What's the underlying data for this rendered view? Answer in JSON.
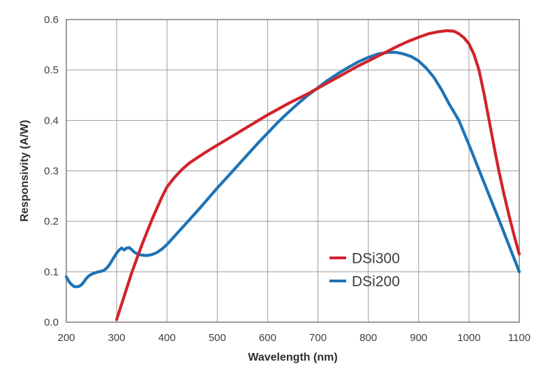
{
  "figure": {
    "background": "#ffffff",
    "grid_color": "#9c9c9c",
    "border_color": "#7d7d7d"
  },
  "chart_data": {
    "type": "line",
    "title": "",
    "xlabel": "Wavelength (nm)",
    "ylabel": "Responsivity (A/W)",
    "xlim": [
      200,
      1100
    ],
    "ylim": [
      0,
      0.6
    ],
    "xticks": [
      200,
      300,
      400,
      500,
      600,
      700,
      800,
      900,
      1000,
      1100
    ],
    "yticks": [
      0,
      0.1,
      0.2,
      0.3,
      0.4,
      0.5,
      0.6
    ],
    "ytick_labels": [
      "0.0",
      "0.1",
      "0.2",
      "0.3",
      "0.4",
      "0.5",
      "0.6"
    ],
    "grid": true,
    "legend_position": "inside lower-right",
    "series": [
      {
        "name": "DSi300",
        "color": "#d1232a",
        "points": [
          [
            300,
            0.005
          ],
          [
            310,
            0.036
          ],
          [
            320,
            0.067
          ],
          [
            330,
            0.098
          ],
          [
            340,
            0.126
          ],
          [
            350,
            0.153
          ],
          [
            360,
            0.178
          ],
          [
            370,
            0.203
          ],
          [
            380,
            0.226
          ],
          [
            390,
            0.248
          ],
          [
            400,
            0.268
          ],
          [
            415,
            0.287
          ],
          [
            430,
            0.303
          ],
          [
            445,
            0.316
          ],
          [
            460,
            0.326
          ],
          [
            480,
            0.339
          ],
          [
            500,
            0.351
          ],
          [
            520,
            0.363
          ],
          [
            540,
            0.375
          ],
          [
            560,
            0.387
          ],
          [
            580,
            0.399
          ],
          [
            600,
            0.411
          ],
          [
            620,
            0.422
          ],
          [
            640,
            0.433
          ],
          [
            660,
            0.443
          ],
          [
            680,
            0.453
          ],
          [
            700,
            0.464
          ],
          [
            720,
            0.475
          ],
          [
            740,
            0.486
          ],
          [
            760,
            0.497
          ],
          [
            780,
            0.508
          ],
          [
            800,
            0.518
          ],
          [
            820,
            0.528
          ],
          [
            840,
            0.538
          ],
          [
            860,
            0.548
          ],
          [
            880,
            0.557
          ],
          [
            900,
            0.565
          ],
          [
            920,
            0.572
          ],
          [
            940,
            0.576
          ],
          [
            955,
            0.578
          ],
          [
            970,
            0.577
          ],
          [
            980,
            0.572
          ],
          [
            990,
            0.564
          ],
          [
            1000,
            0.552
          ],
          [
            1010,
            0.531
          ],
          [
            1020,
            0.5
          ],
          [
            1030,
            0.453
          ],
          [
            1040,
            0.401
          ],
          [
            1050,
            0.348
          ],
          [
            1060,
            0.297
          ],
          [
            1070,
            0.252
          ],
          [
            1080,
            0.21
          ],
          [
            1090,
            0.171
          ],
          [
            1100,
            0.135
          ]
        ]
      },
      {
        "name": "DSi200",
        "color": "#1e73b5",
        "points": [
          [
            200,
            0.09
          ],
          [
            205,
            0.081
          ],
          [
            210,
            0.075
          ],
          [
            215,
            0.071
          ],
          [
            220,
            0.07
          ],
          [
            225,
            0.071
          ],
          [
            230,
            0.074
          ],
          [
            235,
            0.08
          ],
          [
            240,
            0.087
          ],
          [
            245,
            0.092
          ],
          [
            250,
            0.095
          ],
          [
            255,
            0.097
          ],
          [
            260,
            0.099
          ],
          [
            265,
            0.1
          ],
          [
            270,
            0.101
          ],
          [
            275,
            0.103
          ],
          [
            280,
            0.107
          ],
          [
            285,
            0.113
          ],
          [
            290,
            0.121
          ],
          [
            295,
            0.129
          ],
          [
            300,
            0.137
          ],
          [
            305,
            0.143
          ],
          [
            310,
            0.147
          ],
          [
            315,
            0.143
          ],
          [
            320,
            0.147
          ],
          [
            325,
            0.148
          ],
          [
            330,
            0.144
          ],
          [
            335,
            0.139
          ],
          [
            340,
            0.136
          ],
          [
            345,
            0.134
          ],
          [
            350,
            0.133
          ],
          [
            360,
            0.132
          ],
          [
            370,
            0.134
          ],
          [
            380,
            0.138
          ],
          [
            390,
            0.145
          ],
          [
            400,
            0.154
          ],
          [
            420,
            0.176
          ],
          [
            440,
            0.198
          ],
          [
            460,
            0.22
          ],
          [
            480,
            0.243
          ],
          [
            500,
            0.266
          ],
          [
            520,
            0.288
          ],
          [
            540,
            0.31
          ],
          [
            560,
            0.332
          ],
          [
            580,
            0.354
          ],
          [
            600,
            0.375
          ],
          [
            620,
            0.396
          ],
          [
            640,
            0.415
          ],
          [
            660,
            0.433
          ],
          [
            680,
            0.45
          ],
          [
            700,
            0.465
          ],
          [
            720,
            0.48
          ],
          [
            740,
            0.493
          ],
          [
            760,
            0.505
          ],
          [
            780,
            0.516
          ],
          [
            800,
            0.525
          ],
          [
            820,
            0.532
          ],
          [
            840,
            0.535
          ],
          [
            855,
            0.535
          ],
          [
            870,
            0.532
          ],
          [
            885,
            0.527
          ],
          [
            900,
            0.518
          ],
          [
            915,
            0.504
          ],
          [
            930,
            0.486
          ],
          [
            945,
            0.462
          ],
          [
            960,
            0.434
          ],
          [
            980,
            0.4
          ],
          [
            1000,
            0.352
          ],
          [
            1020,
            0.302
          ],
          [
            1040,
            0.252
          ],
          [
            1060,
            0.202
          ],
          [
            1080,
            0.151
          ],
          [
            1100,
            0.1
          ]
        ]
      }
    ]
  }
}
